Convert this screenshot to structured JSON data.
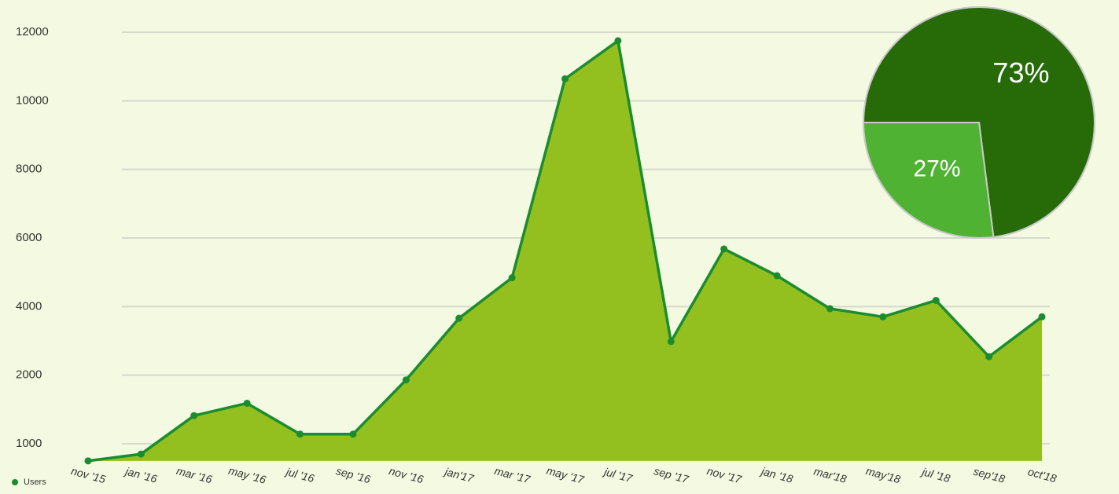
{
  "chart_data": [
    {
      "type": "area",
      "categories": [
        "nov '15",
        "jan '16",
        "mar '16",
        "may '16",
        "jul '16",
        "sep '16",
        "nov '16",
        "jan'17",
        "mar '17",
        "may '17",
        "jul '17",
        "sep '17",
        "nov '17",
        "jan '18",
        "mar'18",
        "may'18",
        "jul '18",
        "sep'18",
        "oct'18"
      ],
      "series": [
        {
          "name": "Users",
          "color": "#1b8c2f",
          "fill_color": "#93c01f",
          "values": [
            750,
            850,
            1410,
            1590,
            1140,
            1140,
            1930,
            3660,
            4840,
            10640,
            11750,
            2980,
            5680,
            4900,
            3940,
            3700,
            4180,
            2540,
            3700
          ]
        }
      ],
      "ylim": [
        750,
        12000
      ],
      "yticks": [
        1000,
        2000,
        4000,
        6000,
        8000,
        10000,
        12000
      ],
      "grid": true,
      "legend": "bottom-left"
    },
    {
      "type": "pie",
      "values": [
        73,
        27
      ],
      "value_labels": [
        "73%",
        "27%"
      ],
      "colors": [
        "#276a08",
        "#4fb233"
      ]
    }
  ]
}
